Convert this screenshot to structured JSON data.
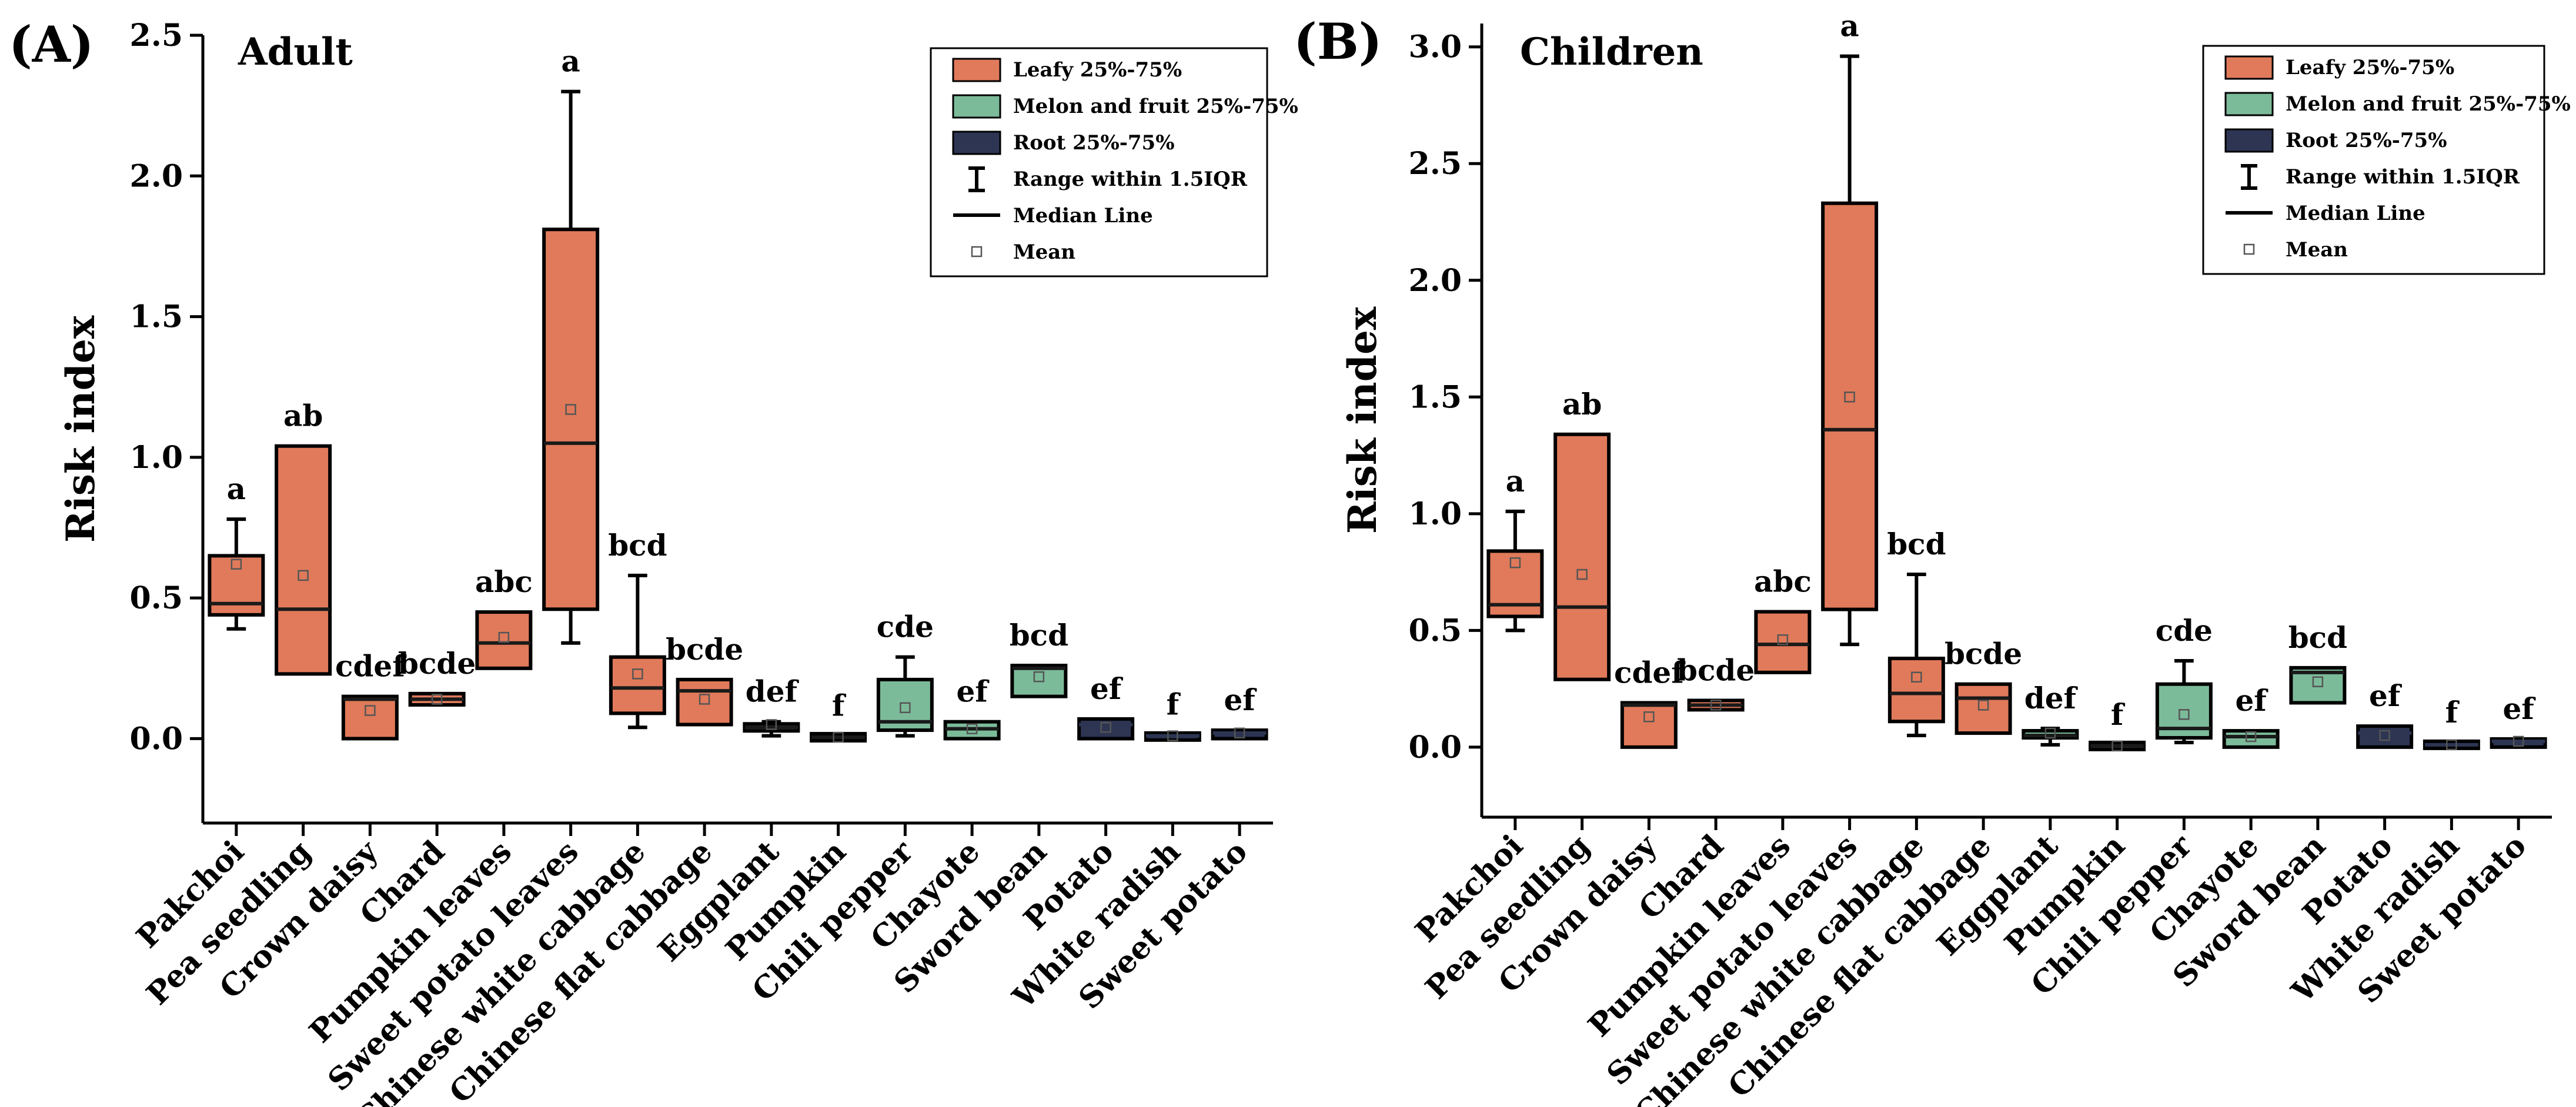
{
  "chart_data": [
    {
      "type": "box",
      "panel_label": "(A)",
      "title": "Adult",
      "xlabel": "",
      "ylabel": "Risk index",
      "ylim": [
        -0.3,
        2.5
      ],
      "yticks": [
        0.0,
        0.5,
        1.0,
        1.5,
        2.0,
        2.5
      ],
      "ytick_labels": [
        "0.0",
        "0.5",
        "1.0",
        "1.5",
        "2.0",
        "2.5"
      ],
      "legend": {
        "position": "top-right",
        "entries": [
          {
            "label": "Leafy 25%-75%",
            "kind": "box",
            "color": "#E07A5A"
          },
          {
            "label": "Melon and fruit 25%-75%",
            "kind": "box",
            "color": "#7CBB9A"
          },
          {
            "label": "Root 25%-75%",
            "kind": "box",
            "color": "#2D3553"
          },
          {
            "label": "Range within 1.5IQR",
            "kind": "whisker"
          },
          {
            "label": "Median Line",
            "kind": "line"
          },
          {
            "label": "Mean",
            "kind": "marker"
          }
        ]
      },
      "boxes": [
        {
          "category": "Pakchoi",
          "group": "Leafy",
          "min": 0.39,
          "q1": 0.44,
          "median": 0.48,
          "q3": 0.65,
          "max": 0.78,
          "mean": 0.62,
          "sig": "a"
        },
        {
          "category": "Pea seedling",
          "group": "Leafy",
          "min": 0.23,
          "q1": 0.23,
          "median": 0.46,
          "q3": 1.04,
          "max": 1.04,
          "mean": 0.58,
          "sig": "ab"
        },
        {
          "category": "Crown daisy",
          "group": "Leafy",
          "min": 0.0,
          "q1": 0.0,
          "median": 0.14,
          "q3": 0.15,
          "max": 0.15,
          "mean": 0.1,
          "sig": "cdef"
        },
        {
          "category": "Chard",
          "group": "Leafy",
          "min": 0.12,
          "q1": 0.12,
          "median": 0.14,
          "q3": 0.16,
          "max": 0.16,
          "mean": 0.14,
          "sig": "bcde"
        },
        {
          "category": "Pumpkin leaves",
          "group": "Leafy",
          "min": 0.25,
          "q1": 0.25,
          "median": 0.34,
          "q3": 0.45,
          "max": 0.45,
          "mean": 0.36,
          "sig": "abc"
        },
        {
          "category": "Sweet potato leaves",
          "group": "Leafy",
          "min": 0.34,
          "q1": 0.46,
          "median": 1.05,
          "q3": 1.81,
          "max": 2.3,
          "mean": 1.17,
          "sig": "a"
        },
        {
          "category": "Chinese white cabbage",
          "group": "Leafy",
          "min": 0.04,
          "q1": 0.09,
          "median": 0.18,
          "q3": 0.29,
          "max": 0.58,
          "mean": 0.23,
          "sig": "bcd"
        },
        {
          "category": "Chinese flat cabbage",
          "group": "Leafy",
          "min": 0.05,
          "q1": 0.05,
          "median": 0.17,
          "q3": 0.21,
          "max": 0.21,
          "mean": 0.14,
          "sig": "bcde"
        },
        {
          "category": "Eggplant",
          "group": "Melon and fruit",
          "min": 0.01,
          "q1": 0.03,
          "median": 0.04,
          "q3": 0.05,
          "max": 0.06,
          "mean": 0.05,
          "sig": "def"
        },
        {
          "category": "Pumpkin",
          "group": "Melon and fruit",
          "min": 0.0,
          "q1": 0.0,
          "median": 0.005,
          "q3": 0.01,
          "max": 0.01,
          "mean": 0.005,
          "sig": "f"
        },
        {
          "category": "Chili pepper",
          "group": "Melon and fruit",
          "min": 0.01,
          "q1": 0.03,
          "median": 0.06,
          "q3": 0.21,
          "max": 0.29,
          "mean": 0.11,
          "sig": "cde"
        },
        {
          "category": "Chayote",
          "group": "Melon and fruit",
          "min": 0.0,
          "q1": 0.0,
          "median": 0.035,
          "q3": 0.06,
          "max": 0.06,
          "mean": 0.035,
          "sig": "ef"
        },
        {
          "category": "Sword bean",
          "group": "Melon and fruit",
          "min": 0.15,
          "q1": 0.15,
          "median": 0.25,
          "q3": 0.26,
          "max": 0.26,
          "mean": 0.22,
          "sig": "bcd"
        },
        {
          "category": "Potato",
          "group": "Root",
          "min": 0.0,
          "q1": 0.0,
          "median": 0.05,
          "q3": 0.07,
          "max": 0.07,
          "mean": 0.04,
          "sig": "ef"
        },
        {
          "category": "White radish",
          "group": "Root",
          "min": 0.0,
          "q1": 0.0,
          "median": 0.01,
          "q3": 0.015,
          "max": 0.015,
          "mean": 0.01,
          "sig": "f"
        },
        {
          "category": "Sweet potato",
          "group": "Root",
          "min": 0.0,
          "q1": 0.0,
          "median": 0.02,
          "q3": 0.03,
          "max": 0.03,
          "mean": 0.02,
          "sig": "ef"
        }
      ]
    },
    {
      "type": "box",
      "panel_label": "(B)",
      "title": "Children",
      "xlabel": "",
      "ylabel": "Risk index",
      "ylim": [
        -0.3,
        3.1
      ],
      "yticks": [
        0.0,
        0.5,
        1.0,
        1.5,
        2.0,
        2.5,
        3.0
      ],
      "ytick_labels": [
        "0.0",
        "0.5",
        "1.0",
        "1.5",
        "2.0",
        "2.5",
        "3.0"
      ],
      "legend": {
        "position": "top-right",
        "entries": [
          {
            "label": "Leafy 25%-75%",
            "kind": "box",
            "color": "#E07A5A"
          },
          {
            "label": "Melon and fruit 25%-75%",
            "kind": "box",
            "color": "#7CBB9A"
          },
          {
            "label": "Root 25%-75%",
            "kind": "box",
            "color": "#2D3553"
          },
          {
            "label": "Range within 1.5IQR",
            "kind": "whisker"
          },
          {
            "label": "Median Line",
            "kind": "line"
          },
          {
            "label": "Mean",
            "kind": "marker"
          }
        ]
      },
      "boxes": [
        {
          "category": "Pakchoi",
          "group": "Leafy",
          "min": 0.5,
          "q1": 0.56,
          "median": 0.61,
          "q3": 0.84,
          "max": 1.01,
          "mean": 0.79,
          "sig": "a"
        },
        {
          "category": "Pea seedling",
          "group": "Leafy",
          "min": 0.29,
          "q1": 0.29,
          "median": 0.6,
          "q3": 1.34,
          "max": 1.34,
          "mean": 0.74,
          "sig": "ab"
        },
        {
          "category": "Crown daisy",
          "group": "Leafy",
          "min": 0.0,
          "q1": 0.0,
          "median": 0.18,
          "q3": 0.19,
          "max": 0.19,
          "mean": 0.13,
          "sig": "cdef"
        },
        {
          "category": "Chard",
          "group": "Leafy",
          "min": 0.16,
          "q1": 0.16,
          "median": 0.18,
          "q3": 0.2,
          "max": 0.2,
          "mean": 0.18,
          "sig": "bcde"
        },
        {
          "category": "Pumpkin leaves",
          "group": "Leafy",
          "min": 0.32,
          "q1": 0.32,
          "median": 0.44,
          "q3": 0.58,
          "max": 0.58,
          "mean": 0.46,
          "sig": "abc"
        },
        {
          "category": "Sweet potato leaves",
          "group": "Leafy",
          "min": 0.44,
          "q1": 0.59,
          "median": 1.36,
          "q3": 2.33,
          "max": 2.96,
          "mean": 1.5,
          "sig": "a"
        },
        {
          "category": "Chinese white cabbage",
          "group": "Leafy",
          "min": 0.05,
          "q1": 0.11,
          "median": 0.23,
          "q3": 0.38,
          "max": 0.74,
          "mean": 0.3,
          "sig": "bcd"
        },
        {
          "category": "Chinese flat cabbage",
          "group": "Leafy",
          "min": 0.06,
          "q1": 0.06,
          "median": 0.21,
          "q3": 0.27,
          "max": 0.27,
          "mean": 0.18,
          "sig": "bcde"
        },
        {
          "category": "Eggplant",
          "group": "Melon and fruit",
          "min": 0.01,
          "q1": 0.04,
          "median": 0.05,
          "q3": 0.07,
          "max": 0.08,
          "mean": 0.06,
          "sig": "def"
        },
        {
          "category": "Pumpkin",
          "group": "Melon and fruit",
          "min": 0.0,
          "q1": 0.0,
          "median": 0.005,
          "q3": 0.01,
          "max": 0.01,
          "mean": 0.005,
          "sig": "f"
        },
        {
          "category": "Chili pepper",
          "group": "Melon and fruit",
          "min": 0.02,
          "q1": 0.04,
          "median": 0.08,
          "q3": 0.27,
          "max": 0.37,
          "mean": 0.14,
          "sig": "cde"
        },
        {
          "category": "Chayote",
          "group": "Melon and fruit",
          "min": 0.0,
          "q1": 0.0,
          "median": 0.045,
          "q3": 0.07,
          "max": 0.07,
          "mean": 0.045,
          "sig": "ef"
        },
        {
          "category": "Sword bean",
          "group": "Melon and fruit",
          "min": 0.19,
          "q1": 0.19,
          "median": 0.32,
          "q3": 0.34,
          "max": 0.34,
          "mean": 0.28,
          "sig": "bcd"
        },
        {
          "category": "Potato",
          "group": "Root",
          "min": 0.0,
          "q1": 0.0,
          "median": 0.06,
          "q3": 0.09,
          "max": 0.09,
          "mean": 0.05,
          "sig": "ef"
        },
        {
          "category": "White radish",
          "group": "Root",
          "min": 0.0,
          "q1": 0.0,
          "median": 0.01,
          "q3": 0.02,
          "max": 0.02,
          "mean": 0.01,
          "sig": "f"
        },
        {
          "category": "Sweet potato",
          "group": "Root",
          "min": 0.0,
          "q1": 0.0,
          "median": 0.025,
          "q3": 0.035,
          "max": 0.035,
          "mean": 0.025,
          "sig": "ef"
        }
      ]
    }
  ]
}
